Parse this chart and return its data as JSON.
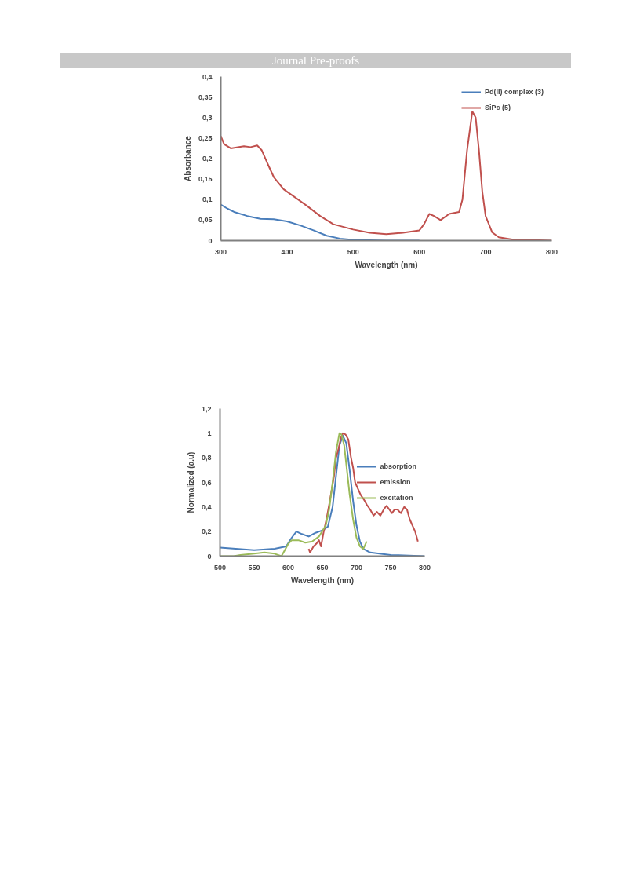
{
  "chart_data": [
    {
      "type": "line",
      "annotations": [
        "Journal Pre-proofs"
      ],
      "xlabel": "Wavelength (nm)",
      "ylabel": "Absorbance",
      "xlim": [
        300,
        800
      ],
      "xticks": [
        300,
        400,
        500,
        600,
        700,
        800
      ],
      "ylim": [
        0,
        0.4
      ],
      "yticks": [
        {
          "value": 0,
          "label": "0"
        },
        {
          "value": 0.05,
          "label": "0,05"
        },
        {
          "value": 0.1,
          "label": "0,1"
        },
        {
          "value": 0.15,
          "label": "0,15"
        },
        {
          "value": 0.2,
          "label": "0,2"
        },
        {
          "value": 0.25,
          "label": "0,25"
        },
        {
          "value": 0.3,
          "label": "0,3"
        },
        {
          "value": 0.35,
          "label": "0,35"
        },
        {
          "value": 0.4,
          "label": "0,4"
        }
      ],
      "grid": false,
      "legend": "top right",
      "marker": "none",
      "line_style": "solid",
      "series": [
        {
          "name": "Pd(II) complex (3)",
          "color": "#4a7ebb",
          "x": [
            300,
            310,
            320,
            340,
            360,
            380,
            400,
            420,
            440,
            460,
            480,
            500,
            550,
            600
          ],
          "values": [
            0.088,
            0.078,
            0.07,
            0.06,
            0.053,
            0.052,
            0.047,
            0.037,
            0.025,
            0.012,
            0.005,
            0.002,
            0,
            0
          ]
        },
        {
          "name": "SiPc (5)",
          "color": "#c0504d",
          "x": [
            300,
            305,
            315,
            335,
            345,
            355,
            362,
            370,
            380,
            395,
            410,
            430,
            450,
            470,
            500,
            525,
            550,
            575,
            600,
            607,
            615,
            622,
            632,
            645,
            660,
            665,
            672,
            680,
            685,
            690,
            695,
            700,
            710,
            720,
            740,
            800
          ],
          "values": [
            0.255,
            0.235,
            0.225,
            0.23,
            0.228,
            0.232,
            0.22,
            0.19,
            0.155,
            0.125,
            0.108,
            0.085,
            0.06,
            0.04,
            0.027,
            0.019,
            0.016,
            0.019,
            0.025,
            0.04,
            0.065,
            0.06,
            0.05,
            0.065,
            0.07,
            0.1,
            0.22,
            0.315,
            0.3,
            0.22,
            0.12,
            0.06,
            0.02,
            0.008,
            0.003,
            0
          ]
        }
      ]
    },
    {
      "type": "line",
      "xlabel": "Wavelength (nm)",
      "ylabel": "Normalized (a.u)",
      "xlim": [
        500,
        800
      ],
      "xticks": [
        500,
        550,
        600,
        650,
        700,
        750,
        800
      ],
      "ylim": [
        0,
        1.2
      ],
      "yticks": [
        {
          "value": 0,
          "label": "0"
        },
        {
          "value": 0.2,
          "label": "0,2"
        },
        {
          "value": 0.4,
          "label": "0,4"
        },
        {
          "value": 0.6,
          "label": "0,6"
        },
        {
          "value": 0.8,
          "label": "0,8"
        },
        {
          "value": 1,
          "label": "1"
        },
        {
          "value": 1.2,
          "label": "1,2"
        }
      ],
      "grid": false,
      "legend": "right",
      "marker": "none",
      "line_style": "solid",
      "series": [
        {
          "name": "absorption",
          "color": "#4a7ebb",
          "x": [
            500,
            550,
            580,
            597,
            605,
            612,
            620,
            630,
            640,
            650,
            658,
            665,
            670,
            675,
            680,
            685,
            690,
            695,
            700,
            705,
            710,
            720,
            750,
            800
          ],
          "values": [
            0.07,
            0.05,
            0.06,
            0.08,
            0.15,
            0.2,
            0.18,
            0.16,
            0.19,
            0.21,
            0.24,
            0.4,
            0.65,
            0.9,
            0.98,
            0.92,
            0.7,
            0.45,
            0.25,
            0.12,
            0.06,
            0.03,
            0.01,
            0
          ]
        },
        {
          "name": "emission",
          "color": "#c0504d",
          "x": [
            630,
            632,
            637,
            641,
            645,
            648,
            652,
            656,
            660,
            664,
            667,
            670,
            674,
            677,
            680,
            684,
            688,
            692,
            695,
            698,
            702,
            706,
            712,
            715,
            720,
            725,
            730,
            735,
            740,
            744,
            748,
            752,
            756,
            760,
            765,
            770,
            774,
            778,
            782,
            786,
            790
          ],
          "values": [
            0.06,
            0.03,
            0.08,
            0.1,
            0.13,
            0.08,
            0.2,
            0.3,
            0.42,
            0.55,
            0.65,
            0.8,
            0.88,
            0.96,
            1.0,
            0.99,
            0.95,
            0.8,
            0.72,
            0.6,
            0.55,
            0.5,
            0.45,
            0.42,
            0.38,
            0.33,
            0.36,
            0.33,
            0.38,
            0.41,
            0.38,
            0.35,
            0.38,
            0.38,
            0.35,
            0.4,
            0.38,
            0.3,
            0.25,
            0.2,
            0.12
          ]
        },
        {
          "name": "excitation",
          "color": "#9bbb59",
          "x": [
            500,
            520,
            530,
            550,
            565,
            580,
            590,
            595,
            600,
            605,
            615,
            625,
            635,
            645,
            655,
            660,
            665,
            670,
            675,
            678,
            682,
            686,
            690,
            695,
            700,
            705,
            710,
            715
          ],
          "values": [
            0,
            0,
            0.01,
            0.02,
            0.03,
            0.02,
            0,
            0.05,
            0.1,
            0.13,
            0.13,
            0.11,
            0.12,
            0.16,
            0.25,
            0.38,
            0.6,
            0.85,
            1.0,
            0.99,
            0.9,
            0.7,
            0.5,
            0.3,
            0.15,
            0.08,
            0.06,
            0.12
          ]
        }
      ]
    }
  ]
}
